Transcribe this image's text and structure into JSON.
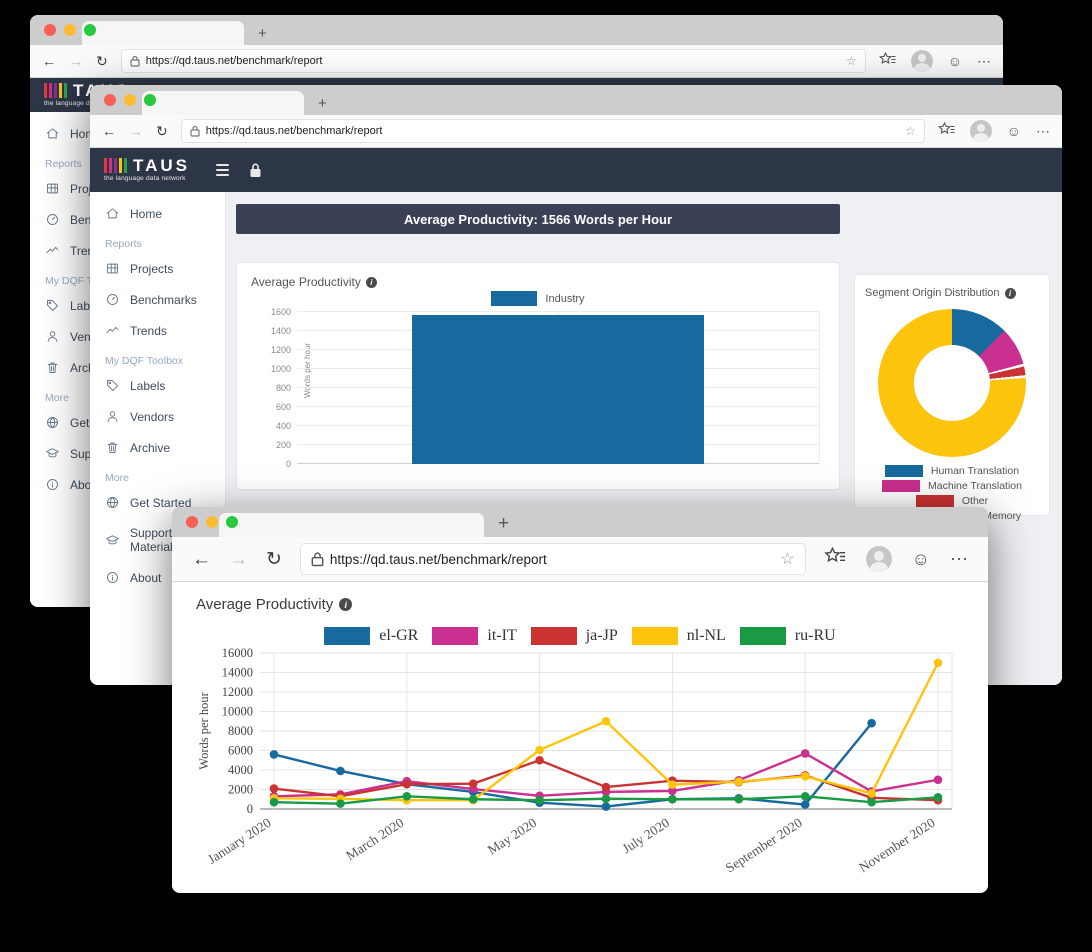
{
  "url": "https://qd.taus.net/benchmark/report",
  "chrome": {
    "back": "←",
    "forward": "→",
    "reload": "↻",
    "new_tab": "+",
    "star": "☆",
    "smiley": "☺",
    "more": "⋯",
    "info": "i"
  },
  "brand": {
    "title": "TAUS",
    "subtitle": "the language data network",
    "bar_colors": [
      "#e0393f",
      "#d43084",
      "#8a2f90",
      "#f2c318",
      "#2f9e4f"
    ]
  },
  "sidebar": {
    "sections": [
      {
        "label": "",
        "items": [
          {
            "icon": "home",
            "label": "Home"
          }
        ]
      },
      {
        "label": "Reports",
        "items": [
          {
            "icon": "projects",
            "label": "Projects"
          },
          {
            "icon": "benchmarks",
            "label": "Benchmarks"
          },
          {
            "icon": "trends",
            "label": "Trends"
          }
        ]
      },
      {
        "label": "My DQF Toolbox",
        "items": [
          {
            "icon": "labels",
            "label": "Labels"
          },
          {
            "icon": "vendors",
            "label": "Vendors"
          },
          {
            "icon": "archive",
            "label": "Archive"
          }
        ]
      },
      {
        "label": "More",
        "items": [
          {
            "icon": "get-started",
            "label": "Get Started"
          },
          {
            "icon": "support",
            "label": "Support Materials"
          },
          {
            "icon": "about",
            "label": "About"
          }
        ]
      }
    ]
  },
  "banner": "Average Productivity: 1566 Words per Hour",
  "bar_card": {
    "title": "Average Productivity",
    "legend": "Industry",
    "ylabel": "Words per hour"
  },
  "donut_card": {
    "title": "Segment Origin Distribution"
  },
  "front_chart": {
    "title": "Average Productivity"
  },
  "chart_data": [
    {
      "type": "bar",
      "title": "Average Productivity",
      "categories": [
        "Industry"
      ],
      "values": [
        1566
      ],
      "ylabel": "Words per hour",
      "ylim": [
        0,
        1600
      ],
      "ytick_step": 200,
      "color": "#17699e"
    },
    {
      "type": "pie",
      "title": "Segment Origin Distribution",
      "labels": [
        "Human Translation",
        "Machine Translation",
        "Other",
        "Translation Memory"
      ],
      "values": [
        12.5,
        8.3,
        1.9,
        77.3
      ],
      "colors": [
        "#17699e",
        "#c9308f",
        "#cb3333",
        "#fdc40d"
      ],
      "legend_position": "bottom"
    },
    {
      "type": "line",
      "title": "Average Productivity",
      "ylabel": "Words per hour",
      "ylim": [
        0,
        16000
      ],
      "ytick_step": 2000,
      "x": [
        "January 2020",
        "February 2020",
        "March 2020",
        "April 2020",
        "May 2020",
        "June 2020",
        "July 2020",
        "August 2020",
        "September 2020",
        "October 2020",
        "November 2020"
      ],
      "x_tick_labels": [
        "January 2020",
        "March 2020",
        "May 2020",
        "July 2020",
        "September 2020",
        "November 2020"
      ],
      "grid": true,
      "legend_position": "top",
      "series": [
        {
          "name": "el-GR",
          "color": "#17699e",
          "values": [
            5600,
            3900,
            2550,
            1750,
            650,
            250,
            1000,
            1100,
            450,
            8800,
            null
          ]
        },
        {
          "name": "it-IT",
          "color": "#c9308f",
          "values": [
            1300,
            1500,
            2850,
            2050,
            1350,
            1750,
            1850,
            2950,
            5700,
            1800,
            3000
          ]
        },
        {
          "name": "ja-JP",
          "color": "#cb3333",
          "values": [
            2100,
            1300,
            2550,
            2600,
            5000,
            2250,
            2900,
            2750,
            3450,
            1150,
            900
          ]
        },
        {
          "name": "nl-NL",
          "color": "#fdc40d",
          "values": [
            1100,
            1050,
            900,
            900,
            6050,
            9000,
            2500,
            2800,
            3350,
            1600,
            15000
          ]
        },
        {
          "name": "ru-RU",
          "color": "#1a9a44",
          "values": [
            700,
            550,
            1300,
            1000,
            900,
            1050,
            1000,
            1000,
            1300,
            700,
            1200
          ]
        }
      ]
    }
  ]
}
